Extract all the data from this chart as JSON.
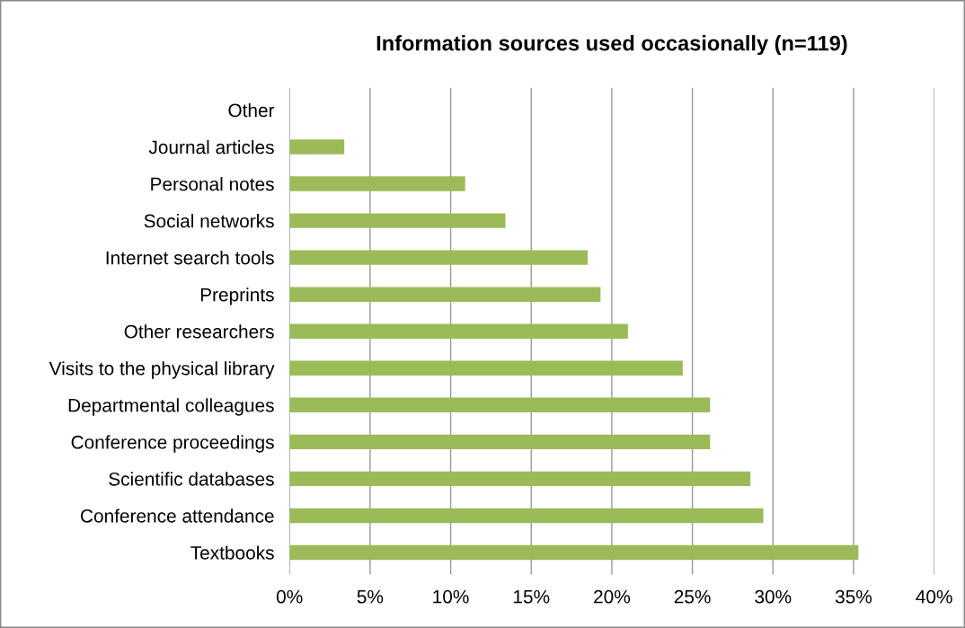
{
  "chart_data": {
    "type": "bar",
    "orientation": "horizontal",
    "title": "Information sources used occasionally (n=119)",
    "categories": [
      "Other",
      "Journal articles",
      "Personal notes",
      "Social networks",
      "Internet search tools",
      "Preprints",
      "Other researchers",
      "Visits to the physical library",
      "Departmental colleagues",
      "Conference proceedings",
      "Scientific databases",
      "Conference attendance",
      "Textbooks"
    ],
    "values": [
      0,
      3.4,
      10.9,
      13.4,
      18.5,
      19.3,
      21.0,
      24.4,
      26.1,
      26.1,
      28.6,
      29.4,
      35.3
    ],
    "color": "#9bbb59",
    "xlim": [
      0,
      40
    ],
    "xticks": [
      {
        "value": 0,
        "label": "0%"
      },
      {
        "value": 5,
        "label": "5%"
      },
      {
        "value": 10,
        "label": "10%"
      },
      {
        "value": 15,
        "label": "15%"
      },
      {
        "value": 20,
        "label": "20%"
      },
      {
        "value": 25,
        "label": "25%"
      },
      {
        "value": 30,
        "label": "30%"
      },
      {
        "value": 35,
        "label": "35%"
      },
      {
        "value": 40,
        "label": "40%"
      }
    ],
    "grid": "x",
    "legend": false
  }
}
